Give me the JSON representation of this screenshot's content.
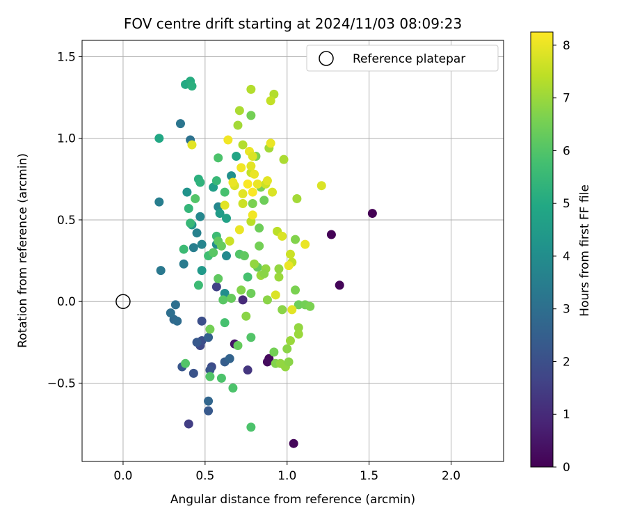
{
  "chart_data": {
    "type": "scatter",
    "title": "FOV centre drift starting at 2024/11/03 08:09:23",
    "xlabel": "Angular distance from reference (arcmin)",
    "ylabel": "Rotation from reference (arcmin)",
    "xlim": [
      -0.25,
      2.32
    ],
    "ylim": [
      -0.98,
      1.6
    ],
    "xticks": [
      0.0,
      0.5,
      1.0,
      1.5,
      2.0
    ],
    "xtick_labels": [
      "0.0",
      "0.5",
      "1.0",
      "1.5",
      "2.0"
    ],
    "yticks": [
      -0.5,
      0.0,
      0.5,
      1.0,
      1.5
    ],
    "ytick_labels": [
      "−0.5",
      "0.0",
      "0.5",
      "1.0",
      "1.5"
    ],
    "grid": true,
    "legend": {
      "position": "top-right",
      "entries": [
        "Reference platepar"
      ]
    },
    "reference_point": {
      "x": 0.0,
      "y": 0.0,
      "label": "Reference platepar"
    },
    "colorbar": {
      "label": "Hours from first FF file",
      "range": [
        0,
        8.25
      ],
      "ticks": [
        0,
        1,
        2,
        3,
        4,
        5,
        6,
        7,
        8
      ],
      "tick_labels": [
        "0",
        "1",
        "2",
        "3",
        "4",
        "5",
        "6",
        "7",
        "8"
      ],
      "colormap": "viridis"
    },
    "points": [
      {
        "x": 1.52,
        "y": 0.54,
        "c": 0.0
      },
      {
        "x": 1.27,
        "y": 0.41,
        "c": 0.05
      },
      {
        "x": 1.32,
        "y": 0.1,
        "c": 0.1
      },
      {
        "x": 1.04,
        "y": -0.87,
        "c": 0.15
      },
      {
        "x": 0.89,
        "y": -0.35,
        "c": 0.2
      },
      {
        "x": 0.88,
        "y": -0.37,
        "c": 0.25
      },
      {
        "x": 0.68,
        "y": -0.26,
        "c": 0.5
      },
      {
        "x": 0.73,
        "y": 0.01,
        "c": 1.0
      },
      {
        "x": 0.76,
        "y": -0.42,
        "c": 1.3
      },
      {
        "x": 0.4,
        "y": -0.75,
        "c": 1.5
      },
      {
        "x": 0.57,
        "y": 0.09,
        "c": 1.6
      },
      {
        "x": 0.47,
        "y": -0.27,
        "c": 1.8
      },
      {
        "x": 0.54,
        "y": -0.4,
        "c": 1.9
      },
      {
        "x": 0.48,
        "y": -0.24,
        "c": 2.0
      },
      {
        "x": 0.48,
        "y": -0.12,
        "c": 2.0
      },
      {
        "x": 0.43,
        "y": -0.44,
        "c": 2.1
      },
      {
        "x": 0.53,
        "y": -0.42,
        "c": 2.1
      },
      {
        "x": 0.36,
        "y": -0.4,
        "c": 2.2
      },
      {
        "x": 0.52,
        "y": -0.67,
        "c": 2.3
      },
      {
        "x": 0.45,
        "y": -0.25,
        "c": 2.3
      },
      {
        "x": 0.62,
        "y": -0.37,
        "c": 2.4
      },
      {
        "x": 0.52,
        "y": -0.22,
        "c": 2.5
      },
      {
        "x": 0.65,
        "y": -0.35,
        "c": 2.6
      },
      {
        "x": 0.52,
        "y": -0.61,
        "c": 2.7
      },
      {
        "x": 0.31,
        "y": -0.11,
        "c": 2.8
      },
      {
        "x": 0.33,
        "y": -0.12,
        "c": 2.9
      },
      {
        "x": 0.29,
        "y": -0.07,
        "c": 3.0
      },
      {
        "x": 0.32,
        "y": -0.02,
        "c": 3.0
      },
      {
        "x": 0.41,
        "y": 0.99,
        "c": 3.1
      },
      {
        "x": 0.35,
        "y": 1.09,
        "c": 3.2
      },
      {
        "x": 0.23,
        "y": 0.19,
        "c": 3.3
      },
      {
        "x": 0.37,
        "y": 0.23,
        "c": 3.4
      },
      {
        "x": 0.22,
        "y": 0.61,
        "c": 3.5
      },
      {
        "x": 0.43,
        "y": 0.33,
        "c": 3.5
      },
      {
        "x": 0.45,
        "y": 0.42,
        "c": 3.6
      },
      {
        "x": 0.48,
        "y": 0.35,
        "c": 3.7
      },
      {
        "x": 0.47,
        "y": 0.52,
        "c": 3.8
      },
      {
        "x": 0.58,
        "y": 0.58,
        "c": 3.8
      },
      {
        "x": 0.63,
        "y": 0.28,
        "c": 3.9
      },
      {
        "x": 0.57,
        "y": 0.35,
        "c": 4.0
      },
      {
        "x": 0.62,
        "y": 0.05,
        "c": 4.0
      },
      {
        "x": 0.66,
        "y": 0.77,
        "c": 4.1
      },
      {
        "x": 0.39,
        "y": 0.67,
        "c": 4.2
      },
      {
        "x": 0.42,
        "y": 0.47,
        "c": 4.3
      },
      {
        "x": 0.48,
        "y": 0.19,
        "c": 4.4
      },
      {
        "x": 0.59,
        "y": 0.54,
        "c": 4.5
      },
      {
        "x": 0.55,
        "y": 0.7,
        "c": 4.6
      },
      {
        "x": 0.63,
        "y": 0.51,
        "c": 4.7
      },
      {
        "x": 0.69,
        "y": 0.89,
        "c": 4.8
      },
      {
        "x": 0.22,
        "y": 1.0,
        "c": 4.9
      },
      {
        "x": 0.38,
        "y": 1.33,
        "c": 5.0
      },
      {
        "x": 0.41,
        "y": 1.35,
        "c": 5.1
      },
      {
        "x": 0.42,
        "y": 1.32,
        "c": 5.2
      },
      {
        "x": 0.46,
        "y": 0.75,
        "c": 5.2
      },
      {
        "x": 0.47,
        "y": 0.73,
        "c": 5.3
      },
      {
        "x": 0.4,
        "y": 0.57,
        "c": 5.4
      },
      {
        "x": 0.41,
        "y": 0.48,
        "c": 5.5
      },
      {
        "x": 0.46,
        "y": 0.1,
        "c": 5.6
      },
      {
        "x": 0.57,
        "y": 0.4,
        "c": 5.6
      },
      {
        "x": 0.52,
        "y": 0.28,
        "c": 5.7
      },
      {
        "x": 0.62,
        "y": -0.13,
        "c": 5.8
      },
      {
        "x": 0.67,
        "y": -0.53,
        "c": 5.9
      },
      {
        "x": 0.6,
        "y": -0.47,
        "c": 5.9
      },
      {
        "x": 0.53,
        "y": -0.46,
        "c": 6.0
      },
      {
        "x": 0.38,
        "y": -0.38,
        "c": 6.0
      },
      {
        "x": 0.57,
        "y": 0.74,
        "c": 5.5
      },
      {
        "x": 0.58,
        "y": 0.88,
        "c": 5.9
      },
      {
        "x": 0.62,
        "y": 0.67,
        "c": 5.8
      },
      {
        "x": 0.37,
        "y": 0.32,
        "c": 5.6
      },
      {
        "x": 0.44,
        "y": 0.63,
        "c": 6.0
      },
      {
        "x": 0.55,
        "y": 0.3,
        "c": 6.1
      },
      {
        "x": 0.58,
        "y": 0.37,
        "c": 6.2
      },
      {
        "x": 0.6,
        "y": 0.34,
        "c": 6.3
      },
      {
        "x": 0.58,
        "y": 0.14,
        "c": 6.2
      },
      {
        "x": 0.61,
        "y": 0.01,
        "c": 6.1
      },
      {
        "x": 0.66,
        "y": 0.02,
        "c": 6.3
      },
      {
        "x": 0.7,
        "y": -0.27,
        "c": 6.3
      },
      {
        "x": 0.53,
        "y": -0.17,
        "c": 6.5
      },
      {
        "x": 0.78,
        "y": -0.22,
        "c": 6.0
      },
      {
        "x": 0.78,
        "y": -0.77,
        "c": 5.9
      },
      {
        "x": 0.76,
        "y": 0.15,
        "c": 5.8
      },
      {
        "x": 0.71,
        "y": 0.29,
        "c": 6.0
      },
      {
        "x": 0.74,
        "y": 0.28,
        "c": 6.2
      },
      {
        "x": 0.78,
        "y": 0.05,
        "c": 6.4
      },
      {
        "x": 0.72,
        "y": 0.07,
        "c": 6.7
      },
      {
        "x": 0.75,
        "y": -0.09,
        "c": 6.8
      },
      {
        "x": 0.83,
        "y": 0.45,
        "c": 6.4
      },
      {
        "x": 0.83,
        "y": 0.34,
        "c": 6.5
      },
      {
        "x": 0.82,
        "y": 0.21,
        "c": 6.3
      },
      {
        "x": 0.79,
        "y": 0.6,
        "c": 6.6
      },
      {
        "x": 0.86,
        "y": 0.62,
        "c": 6.4
      },
      {
        "x": 0.84,
        "y": 0.7,
        "c": 6.6
      },
      {
        "x": 0.81,
        "y": 0.89,
        "c": 6.6
      },
      {
        "x": 0.78,
        "y": 1.14,
        "c": 6.5
      },
      {
        "x": 0.8,
        "y": 0.23,
        "c": 6.9
      },
      {
        "x": 0.84,
        "y": 0.16,
        "c": 7.0
      },
      {
        "x": 0.87,
        "y": 0.2,
        "c": 6.9
      },
      {
        "x": 0.86,
        "y": 0.17,
        "c": 6.8
      },
      {
        "x": 0.88,
        "y": 0.01,
        "c": 6.8
      },
      {
        "x": 0.92,
        "y": -0.31,
        "c": 6.5
      },
      {
        "x": 0.93,
        "y": -0.38,
        "c": 6.7
      },
      {
        "x": 0.96,
        "y": -0.38,
        "c": 6.9
      },
      {
        "x": 0.97,
        "y": -0.05,
        "c": 6.8
      },
      {
        "x": 0.95,
        "y": 0.15,
        "c": 7.0
      },
      {
        "x": 0.95,
        "y": 0.2,
        "c": 6.9
      },
      {
        "x": 0.99,
        "y": -0.4,
        "c": 6.9
      },
      {
        "x": 1.0,
        "y": -0.29,
        "c": 6.8
      },
      {
        "x": 1.01,
        "y": -0.37,
        "c": 6.8
      },
      {
        "x": 1.02,
        "y": -0.24,
        "c": 7.0
      },
      {
        "x": 1.07,
        "y": -0.16,
        "c": 6.9
      },
      {
        "x": 1.07,
        "y": -0.2,
        "c": 7.0
      },
      {
        "x": 1.05,
        "y": 0.07,
        "c": 6.6
      },
      {
        "x": 1.05,
        "y": 0.38,
        "c": 6.7
      },
      {
        "x": 1.07,
        "y": -0.02,
        "c": 6.4
      },
      {
        "x": 1.11,
        "y": -0.02,
        "c": 6.5
      },
      {
        "x": 1.14,
        "y": -0.03,
        "c": 6.6
      },
      {
        "x": 1.06,
        "y": 0.63,
        "c": 7.1
      },
      {
        "x": 0.98,
        "y": 0.87,
        "c": 7.2
      },
      {
        "x": 0.92,
        "y": 1.27,
        "c": 7.3
      },
      {
        "x": 0.9,
        "y": 1.23,
        "c": 7.5
      },
      {
        "x": 0.89,
        "y": 0.94,
        "c": 7.1
      },
      {
        "x": 0.78,
        "y": 1.3,
        "c": 7.3
      },
      {
        "x": 0.71,
        "y": 1.17,
        "c": 7.2
      },
      {
        "x": 0.7,
        "y": 1.08,
        "c": 7.1
      },
      {
        "x": 0.73,
        "y": 0.96,
        "c": 7.3
      },
      {
        "x": 0.78,
        "y": 0.79,
        "c": 7.5
      },
      {
        "x": 0.78,
        "y": 0.49,
        "c": 7.4
      },
      {
        "x": 0.73,
        "y": 0.6,
        "c": 7.6
      },
      {
        "x": 0.68,
        "y": 0.71,
        "c": 7.8
      },
      {
        "x": 0.65,
        "y": 0.37,
        "c": 7.6
      },
      {
        "x": 0.62,
        "y": 0.59,
        "c": 7.9
      },
      {
        "x": 0.71,
        "y": 0.44,
        "c": 8.0
      },
      {
        "x": 0.67,
        "y": 0.73,
        "c": 8.0
      },
      {
        "x": 0.72,
        "y": 0.82,
        "c": 8.1
      },
      {
        "x": 0.77,
        "y": 0.92,
        "c": 8.0
      },
      {
        "x": 0.79,
        "y": 0.89,
        "c": 7.8
      },
      {
        "x": 0.64,
        "y": 0.99,
        "c": 8.1
      },
      {
        "x": 0.78,
        "y": 0.83,
        "c": 7.9
      },
      {
        "x": 0.8,
        "y": 0.78,
        "c": 8.0
      },
      {
        "x": 0.76,
        "y": 0.72,
        "c": 8.2
      },
      {
        "x": 0.73,
        "y": 0.66,
        "c": 7.9
      },
      {
        "x": 0.79,
        "y": 0.53,
        "c": 8.1
      },
      {
        "x": 0.79,
        "y": 0.67,
        "c": 8.2
      },
      {
        "x": 0.82,
        "y": 0.72,
        "c": 8.0
      },
      {
        "x": 0.87,
        "y": 0.72,
        "c": 7.6
      },
      {
        "x": 0.88,
        "y": 0.74,
        "c": 7.9
      },
      {
        "x": 0.91,
        "y": 0.67,
        "c": 7.8
      },
      {
        "x": 0.9,
        "y": 0.97,
        "c": 8.0
      },
      {
        "x": 0.94,
        "y": 0.43,
        "c": 7.4
      },
      {
        "x": 0.97,
        "y": 0.4,
        "c": 7.8
      },
      {
        "x": 1.02,
        "y": 0.29,
        "c": 7.6
      },
      {
        "x": 1.03,
        "y": 0.24,
        "c": 7.5
      },
      {
        "x": 1.01,
        "y": 0.22,
        "c": 8.0
      },
      {
        "x": 0.93,
        "y": 0.04,
        "c": 7.8
      },
      {
        "x": 1.03,
        "y": -0.05,
        "c": 7.9
      },
      {
        "x": 1.11,
        "y": 0.35,
        "c": 8.0
      },
      {
        "x": 1.21,
        "y": 0.71,
        "c": 7.8
      },
      {
        "x": 0.42,
        "y": 0.96,
        "c": 7.9
      }
    ]
  }
}
